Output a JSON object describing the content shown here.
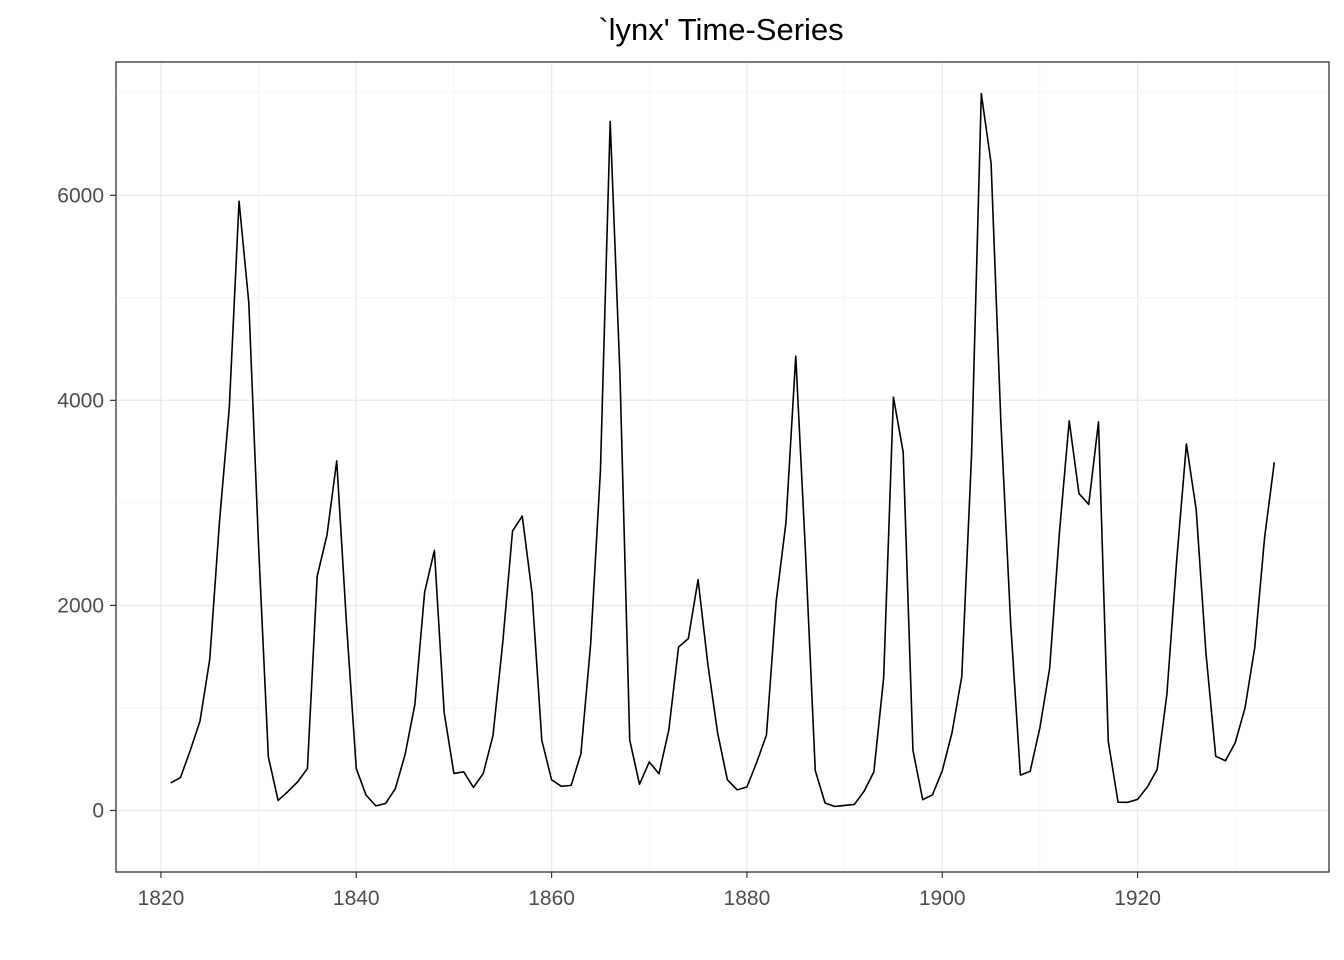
{
  "chart_data": {
    "type": "line",
    "title": "`lynx' Time-Series",
    "xlabel": "",
    "ylabel": "",
    "xlim": [
      1815.4,
      1939.6
    ],
    "ylim": [
      -600,
      7300
    ],
    "x_ticks": [
      1820,
      1840,
      1860,
      1880,
      1900,
      1920
    ],
    "x_minor_ticks": [
      1830,
      1850,
      1870,
      1890,
      1910,
      1930
    ],
    "y_ticks": [
      0,
      2000,
      4000,
      6000
    ],
    "y_minor_ticks": [
      1000,
      3000,
      5000,
      7000
    ],
    "grid": true,
    "legend": "none",
    "series": [
      {
        "x_start": 1821,
        "values": [
          269,
          321,
          585,
          871,
          1475,
          2821,
          3928,
          5943,
          4950,
          2577,
          523,
          98,
          184,
          279,
          409,
          2285,
          2685,
          3409,
          1824,
          409,
          151,
          45,
          68,
          213,
          546,
          1033,
          2129,
          2536,
          957,
          361,
          377,
          225,
          360,
          731,
          1638,
          2725,
          2871,
          2119,
          684,
          299,
          236,
          245,
          552,
          1623,
          3311,
          6721,
          4254,
          687,
          255,
          473,
          358,
          784,
          1594,
          1676,
          2251,
          1426,
          756,
          299,
          201,
          229,
          469,
          736,
          2042,
          2811,
          4431,
          2511,
          389,
          73,
          39,
          49,
          59,
          188,
          377,
          1292,
          4031,
          3495,
          587,
          105,
          153,
          387,
          758,
          1307,
          3465,
          6991,
          6313,
          3794,
          1836,
          345,
          382,
          808,
          1388,
          2713,
          3800,
          3091,
          2985,
          3790,
          674,
          81,
          80,
          108,
          229,
          399,
          1132,
          2432,
          3574,
          2935,
          1537,
          529,
          485,
          662,
          1000,
          1590,
          2657,
          3396
        ]
      }
    ],
    "colors": {
      "line": "#000000",
      "grid": "#ebebeb",
      "border": "#333333",
      "tick_text": "#4d4d4d"
    }
  }
}
